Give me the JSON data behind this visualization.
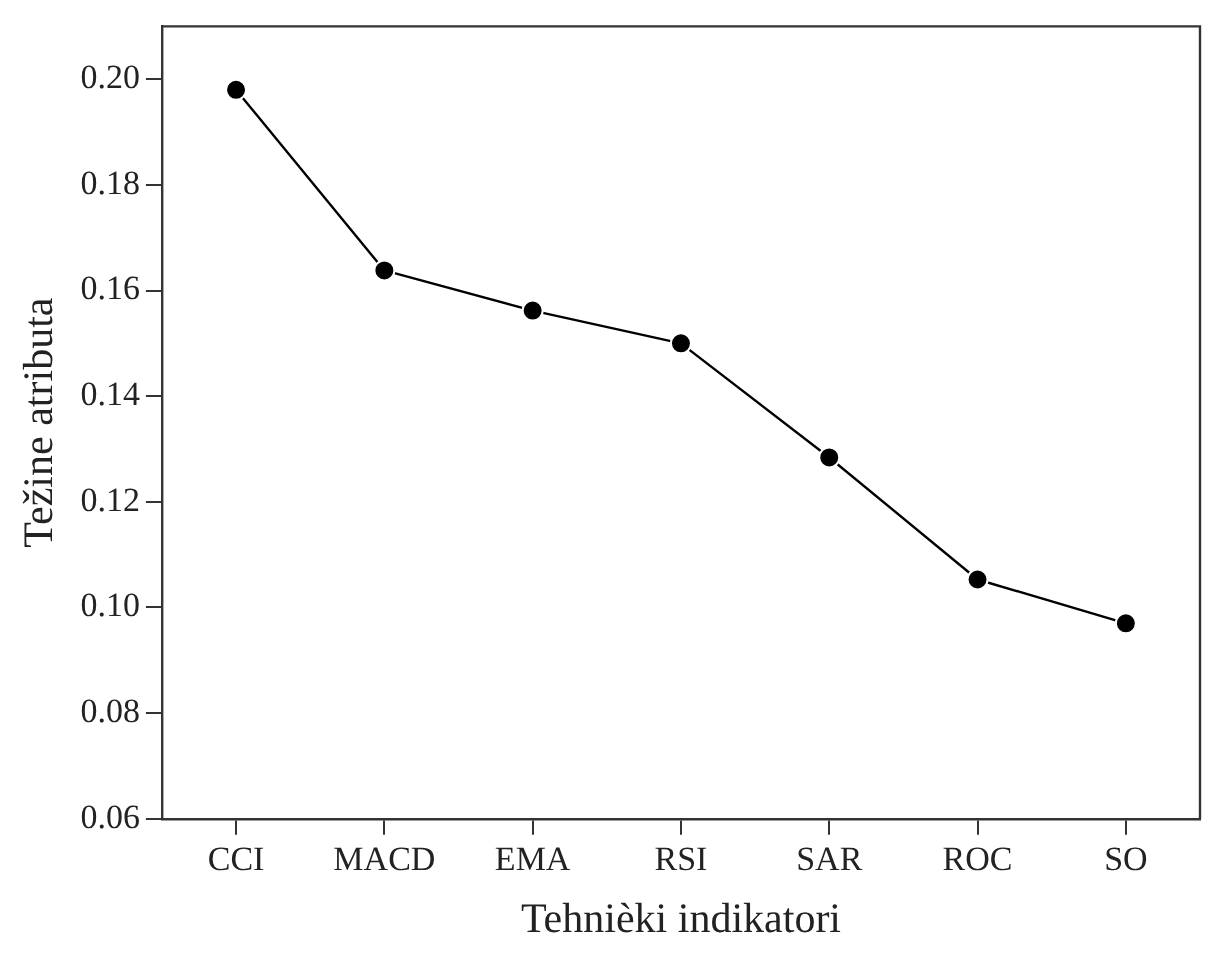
{
  "chart_data": {
    "type": "line",
    "xlabel": "Tehnièki indikatori",
    "ylabel": "Težine atributa",
    "categories": [
      "CCI",
      "MACD",
      "EMA",
      "RSI",
      "SAR",
      "ROC",
      "SO"
    ],
    "series": [
      {
        "color": "#000000",
        "values": [
          0.198,
          0.1638,
          0.1562,
          0.15,
          0.1284,
          0.1053,
          0.097
        ]
      }
    ],
    "ylim": [
      0.06,
      0.21
    ],
    "yticks": [
      {
        "value": 0.06,
        "label": "0.06"
      },
      {
        "value": 0.08,
        "label": "0.08"
      },
      {
        "value": 0.1,
        "label": "0.10"
      },
      {
        "value": 0.12,
        "label": "0.12"
      },
      {
        "value": 0.14,
        "label": "0.14"
      },
      {
        "value": 0.16,
        "label": "0.16"
      },
      {
        "value": 0.18,
        "label": "0.18"
      },
      {
        "value": 0.2,
        "label": "0.20"
      }
    ],
    "grid": false,
    "legend": false,
    "marker": "circle",
    "line_style": "solid"
  }
}
